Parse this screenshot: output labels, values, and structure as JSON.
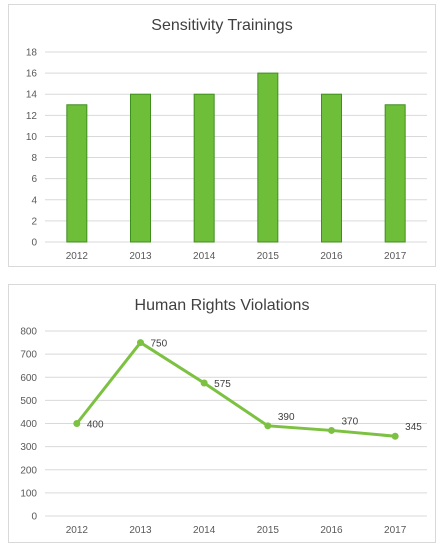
{
  "chart_data": [
    {
      "type": "bar",
      "title": "Sensitivity Trainings",
      "categories": [
        "2012",
        "2013",
        "2014",
        "2015",
        "2016",
        "2017"
      ],
      "values": [
        13,
        14,
        14,
        16,
        14,
        13
      ],
      "ylim": [
        0,
        18
      ],
      "yticks": [
        0,
        2,
        4,
        6,
        8,
        10,
        12,
        14,
        16,
        18
      ],
      "grid": true,
      "color": "#6fbe3a",
      "edge_color": "#3f8f1f"
    },
    {
      "type": "line",
      "title": "Human Rights Violations",
      "categories": [
        "2012",
        "2013",
        "2014",
        "2015",
        "2016",
        "2017"
      ],
      "values": [
        400,
        750,
        575,
        390,
        370,
        345
      ],
      "data_labels": [
        "400",
        "750",
        "575",
        "390",
        "370",
        "345"
      ],
      "ylim": [
        0,
        800
      ],
      "yticks": [
        0,
        100,
        200,
        300,
        400,
        500,
        600,
        700,
        800
      ],
      "grid": true,
      "color": "#7cc142"
    }
  ]
}
